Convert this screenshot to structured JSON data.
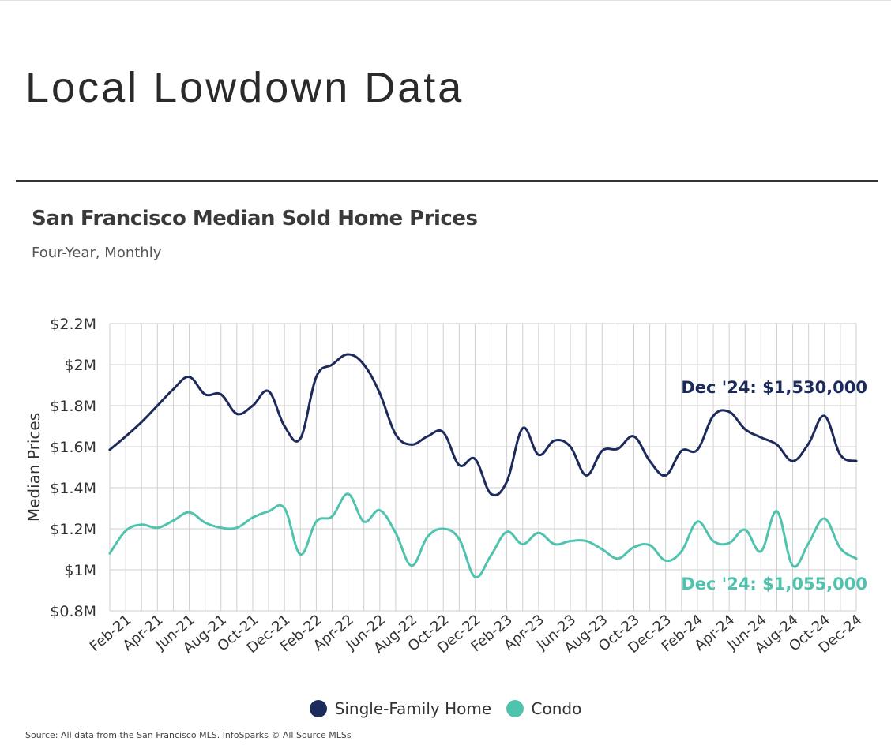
{
  "page": {
    "title": "Local Lowdown Data",
    "source": "Source:  All data from the San Francisco MLS. InfoSparks © All Source MLSs"
  },
  "colors": {
    "single_family": "#1c2a5c",
    "condo": "#4fc3ad",
    "grid": "#cfcfcf",
    "text": "#333333"
  },
  "chart_data": {
    "type": "line",
    "title": "San Francisco Median Sold Home Prices",
    "subtitle": "Four-Year, Monthly",
    "ylabel": "Median Prices",
    "ylim": [
      0.8,
      2.2
    ],
    "yticks": [
      0.8,
      1.0,
      1.2,
      1.4,
      1.6,
      1.8,
      2.0,
      2.2
    ],
    "ytick_labels": [
      "$0.8M",
      "$1M",
      "$1.2M",
      "$1.4M",
      "$1.6M",
      "$1.8M",
      "$2M",
      "$2.2M"
    ],
    "x": [
      "Jan-21",
      "Feb-21",
      "Mar-21",
      "Apr-21",
      "May-21",
      "Jun-21",
      "Jul-21",
      "Aug-21",
      "Sep-21",
      "Oct-21",
      "Nov-21",
      "Dec-21",
      "Jan-22",
      "Feb-22",
      "Mar-22",
      "Apr-22",
      "May-22",
      "Jun-22",
      "Jul-22",
      "Aug-22",
      "Sep-22",
      "Oct-22",
      "Nov-22",
      "Dec-22",
      "Jan-23",
      "Feb-23",
      "Mar-23",
      "Apr-23",
      "May-23",
      "Jun-23",
      "Jul-23",
      "Aug-23",
      "Sep-23",
      "Oct-23",
      "Nov-23",
      "Dec-23",
      "Jan-24",
      "Feb-24",
      "Mar-24",
      "Apr-24",
      "May-24",
      "Jun-24",
      "Jul-24",
      "Aug-24",
      "Sep-24",
      "Oct-24",
      "Nov-24",
      "Dec-24"
    ],
    "xtick_labels": [
      "Feb-21",
      "Apr-21",
      "Jun-21",
      "Aug-21",
      "Oct-21",
      "Dec-21",
      "Feb-22",
      "Apr-22",
      "Jun-22",
      "Aug-22",
      "Oct-22",
      "Dec-22",
      "Feb-23",
      "Apr-23",
      "Jun-23",
      "Aug-23",
      "Oct-23",
      "Dec-23",
      "Feb-24",
      "Apr-24",
      "Jun-24",
      "Aug-24",
      "Oct-24",
      "Dec-24"
    ],
    "series": [
      {
        "name": "Single-Family Home",
        "values": [
          1.585,
          1.65,
          1.72,
          1.8,
          1.88,
          1.94,
          1.855,
          1.855,
          1.76,
          1.8,
          1.87,
          1.7,
          1.64,
          1.94,
          2.0,
          2.05,
          2.0,
          1.86,
          1.66,
          1.61,
          1.65,
          1.67,
          1.51,
          1.54,
          1.37,
          1.43,
          1.69,
          1.56,
          1.63,
          1.6,
          1.46,
          1.58,
          1.59,
          1.65,
          1.53,
          1.46,
          1.58,
          1.585,
          1.75,
          1.77,
          1.685,
          1.645,
          1.61,
          1.53,
          1.615,
          1.75,
          1.56,
          1.53
        ],
        "end_label": "Dec '24: $1,530,000"
      },
      {
        "name": "Condo",
        "values": [
          1.08,
          1.19,
          1.22,
          1.205,
          1.24,
          1.28,
          1.23,
          1.205,
          1.205,
          1.255,
          1.285,
          1.3,
          1.075,
          1.235,
          1.26,
          1.37,
          1.235,
          1.29,
          1.18,
          1.02,
          1.16,
          1.2,
          1.15,
          0.965,
          1.07,
          1.185,
          1.125,
          1.18,
          1.125,
          1.14,
          1.14,
          1.1,
          1.055,
          1.11,
          1.12,
          1.045,
          1.09,
          1.235,
          1.14,
          1.13,
          1.195,
          1.09,
          1.285,
          1.02,
          1.13,
          1.25,
          1.105,
          1.055
        ],
        "end_label": "Dec '24: $1,055,000"
      }
    ],
    "legend": {
      "position": "bottom",
      "items": [
        "Single-Family Home",
        "Condo"
      ]
    },
    "grid": true
  }
}
